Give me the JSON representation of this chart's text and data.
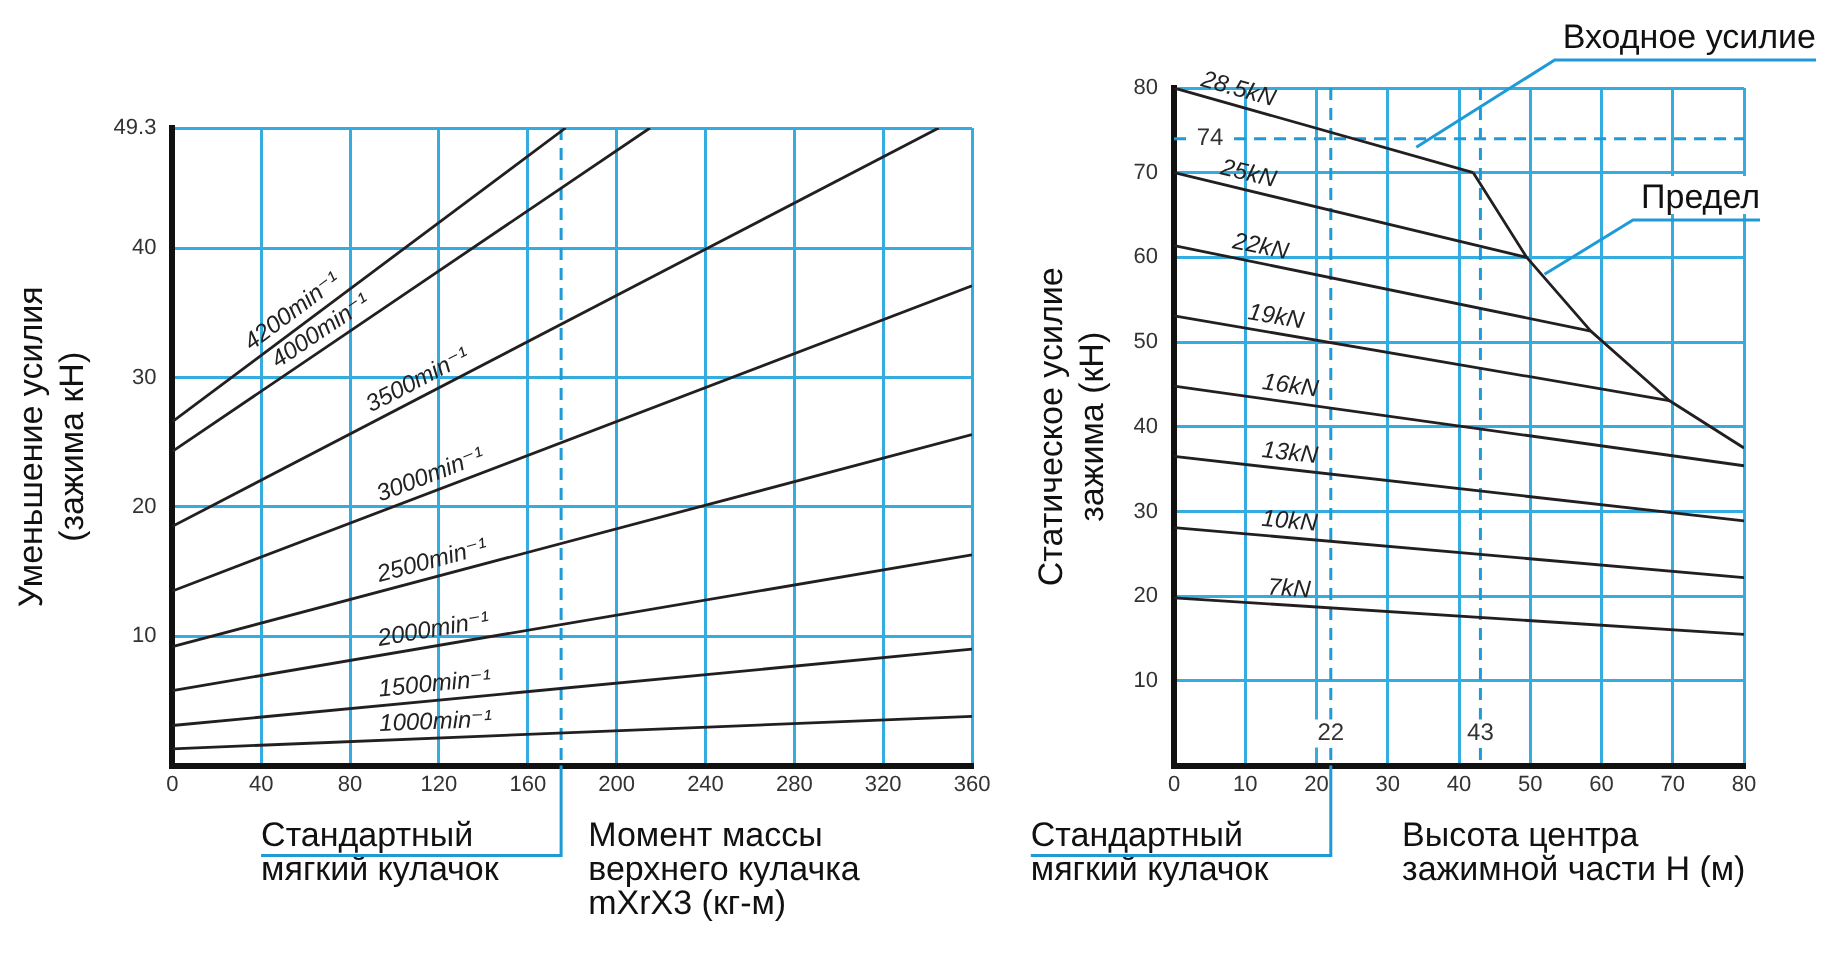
{
  "chart_data": [
    {
      "type": "line",
      "xlabel": "Момент массы\nверхнего кулачка\nmXrX3 (кг-м)",
      "ylabel": "Уменьшение усилия\n(зажима кН)",
      "xlim": [
        0,
        360
      ],
      "ylim": [
        0,
        49.3
      ],
      "xticks": [
        0,
        40,
        80,
        120,
        160,
        200,
        240,
        280,
        320,
        360
      ],
      "yticks": [
        10,
        20,
        30,
        40,
        49.3
      ],
      "grid": true,
      "series": [
        {
          "name": "4200min⁻¹",
          "color": "#231f20",
          "x": [
            0,
            177
          ],
          "values": [
            26.6,
            49.3
          ]
        },
        {
          "name": "4000min⁻¹",
          "color": "#231f20",
          "x": [
            0,
            215
          ],
          "values": [
            24.3,
            49.3
          ]
        },
        {
          "name": "3500min⁻¹",
          "color": "#231f20",
          "x": [
            0,
            345
          ],
          "values": [
            18.5,
            49.3
          ]
        },
        {
          "name": "3000min⁻¹",
          "color": "#231f20",
          "x": [
            0,
            360
          ],
          "values": [
            13.5,
            37.1
          ]
        },
        {
          "name": "2500min⁻¹",
          "color": "#231f20",
          "x": [
            0,
            360
          ],
          "values": [
            9.2,
            25.6
          ]
        },
        {
          "name": "2000min⁻¹",
          "color": "#231f20",
          "x": [
            0,
            360
          ],
          "values": [
            5.8,
            16.3
          ]
        },
        {
          "name": "1500min⁻¹",
          "color": "#231f20",
          "x": [
            0,
            360
          ],
          "values": [
            3.1,
            9.0
          ]
        },
        {
          "name": "1000min⁻¹",
          "color": "#231f20",
          "x": [
            0,
            360
          ],
          "values": [
            1.3,
            3.8
          ]
        }
      ],
      "ref_lines": [
        {
          "axis": "x",
          "value": 175,
          "color": "#1e9bd7",
          "line_style": "dashed"
        }
      ],
      "annotations": [
        {
          "text": "Стандартный\nмягкий кулачок",
          "x": 175,
          "y": 0
        }
      ]
    },
    {
      "type": "line",
      "xlabel": "Высота центра\nзажимной части Н (м)",
      "ylabel": "Статическое усилие\nзажима (кН)",
      "xlim": [
        0,
        80
      ],
      "ylim": [
        0,
        80
      ],
      "xticks": [
        0,
        10,
        20,
        30,
        40,
        50,
        60,
        70,
        80
      ],
      "yticks": [
        10,
        20,
        30,
        40,
        50,
        60,
        70,
        80
      ],
      "grid": true,
      "series": [
        {
          "name": "28.5kN",
          "color": "#231f20",
          "x": [
            0,
            42
          ],
          "values": [
            80,
            70
          ]
        },
        {
          "color": "#231f20",
          "x": [
            42,
            49.5,
            58.5,
            69.5,
            80
          ],
          "values": [
            70,
            60,
            51.3,
            43.1,
            37.5
          ]
        },
        {
          "name": "25kN",
          "color": "#231f20",
          "x": [
            0,
            49.5
          ],
          "values": [
            70,
            60
          ]
        },
        {
          "name": "22kN",
          "color": "#231f20",
          "x": [
            0,
            58.5
          ],
          "values": [
            61.4,
            51.3
          ]
        },
        {
          "name": "19kN",
          "color": "#231f20",
          "x": [
            0,
            69.5
          ],
          "values": [
            53.1,
            43.1
          ]
        },
        {
          "name": "16kN",
          "color": "#231f20",
          "x": [
            0,
            80
          ],
          "values": [
            44.8,
            35.4
          ]
        },
        {
          "name": "13kN",
          "color": "#231f20",
          "x": [
            0,
            80
          ],
          "values": [
            36.5,
            28.9
          ]
        },
        {
          "name": "10kN",
          "color": "#231f20",
          "x": [
            0,
            80
          ],
          "values": [
            28.1,
            22.2
          ]
        },
        {
          "name": "7kN",
          "color": "#231f20",
          "x": [
            0,
            80
          ],
          "values": [
            19.8,
            15.5
          ]
        }
      ],
      "ref_lines": [
        {
          "axis": "x",
          "value": 22,
          "label": "22",
          "color": "#1e9bd7",
          "line_style": "dashed"
        },
        {
          "axis": "x",
          "value": 43,
          "label": "43",
          "color": "#1e9bd7",
          "line_style": "dashed"
        },
        {
          "axis": "y",
          "value": 74,
          "label": "74",
          "color": "#1e9bd7",
          "line_style": "dashed"
        }
      ],
      "annotations": [
        {
          "text": "Стандартный\nмягкий кулачок",
          "x": 22,
          "y": 0
        },
        {
          "text": "Входное усилие",
          "x": 34,
          "y": 73
        },
        {
          "text": "Предел",
          "x": 52,
          "y": 58
        }
      ]
    }
  ]
}
